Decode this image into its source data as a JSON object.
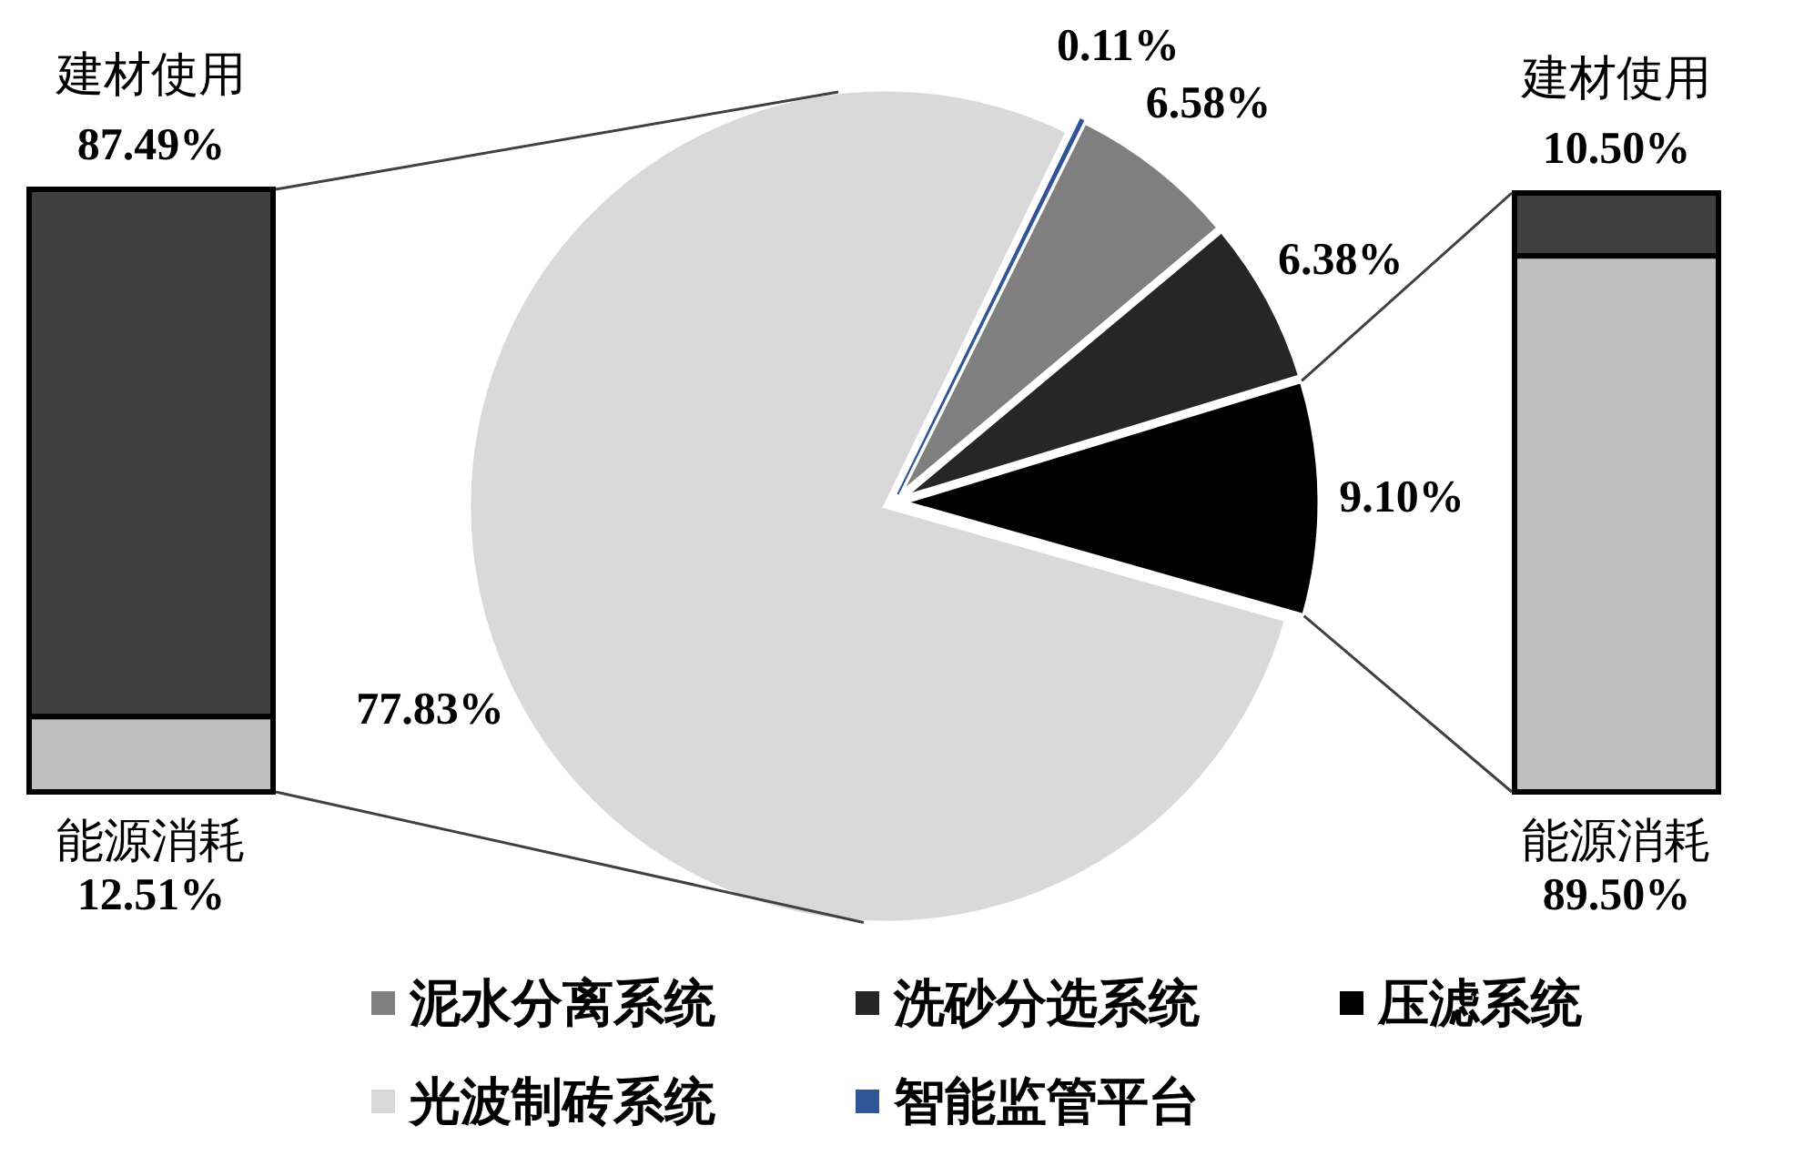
{
  "chart_data": [
    {
      "type": "bar",
      "stacked": true,
      "categories": [
        null
      ],
      "series": [
        {
          "name": "能源消耗",
          "color": "#bfbfbf",
          "values": [
            12.51
          ],
          "value_labels": [
            "12.51%"
          ]
        },
        {
          "name": "建材使用",
          "color": "#404040",
          "values": [
            87.49
          ],
          "value_labels": [
            "87.49%"
          ]
        }
      ]
    },
    {
      "type": "pie",
      "categories": [
        "泥水分离系统",
        "洗砂分选系统",
        "压滤系统",
        "光波制砖系统",
        "智能监管平台"
      ],
      "values": [
        6.58,
        6.38,
        9.1,
        77.83,
        0.11
      ],
      "value_labels": [
        "6.58%",
        "6.38%",
        "9.10%",
        "77.83%",
        "0.11%"
      ],
      "colors": [
        "#7f7f7f",
        "#262626",
        "#000000",
        "#d9d9d9",
        "#2f5597"
      ],
      "legend": "bottom"
    },
    {
      "type": "bar",
      "stacked": true,
      "categories": [
        null
      ],
      "series": [
        {
          "name": "能源消耗",
          "color": "#bfbfbf",
          "values": [
            89.5
          ],
          "value_labels": [
            "89.50%"
          ]
        },
        {
          "name": "建材使用",
          "color": "#404040",
          "values": [
            10.5
          ],
          "value_labels": [
            "10.50%"
          ]
        }
      ]
    }
  ]
}
